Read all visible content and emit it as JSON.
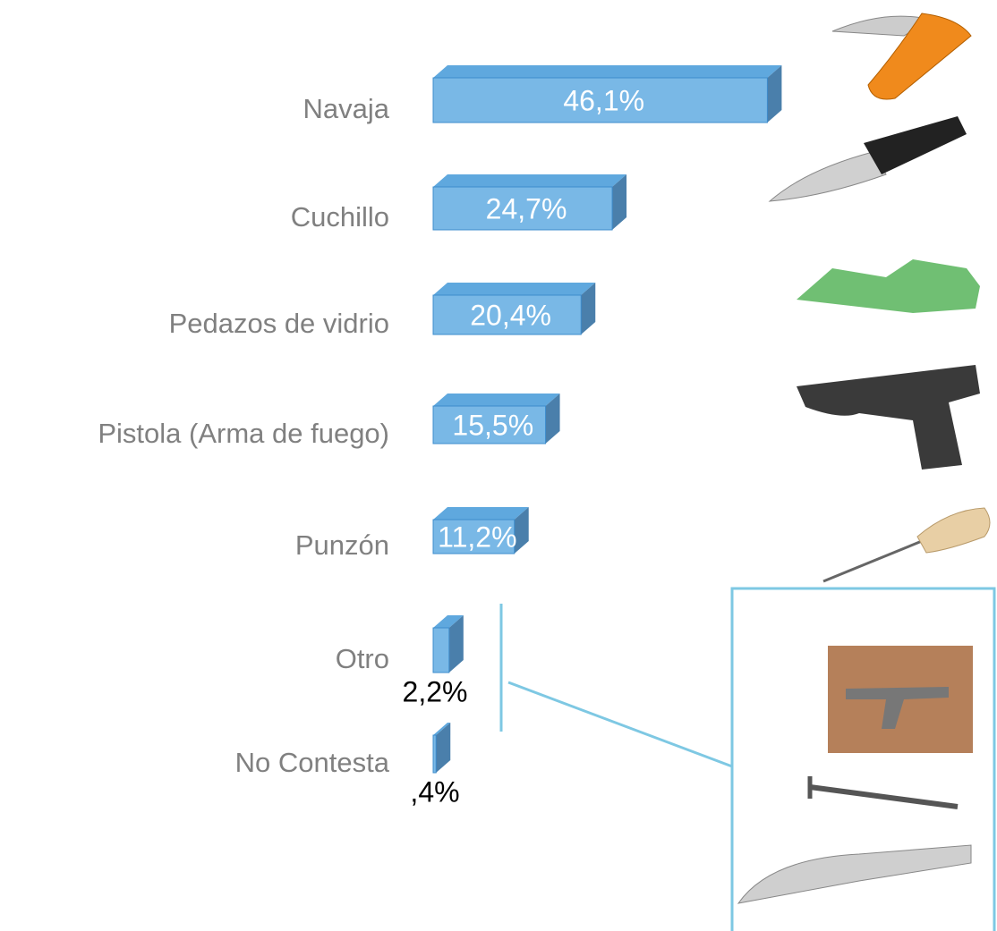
{
  "chart_data": {
    "type": "bar",
    "orientation": "horizontal",
    "categories": [
      "Navaja",
      "Cuchillo",
      "Pedazos de vidrio",
      "Pistola (Arma de fuego)",
      "Punzón",
      "Otro",
      "No Contesta"
    ],
    "values": [
      46.1,
      24.7,
      20.4,
      15.5,
      11.2,
      2.2,
      0.4
    ],
    "value_labels": [
      "46,1%",
      "24,7%",
      "20,4%",
      "15,5%",
      "11,2%",
      "2,2%",
      ",4%"
    ],
    "color": "#79b8e6"
  }
}
